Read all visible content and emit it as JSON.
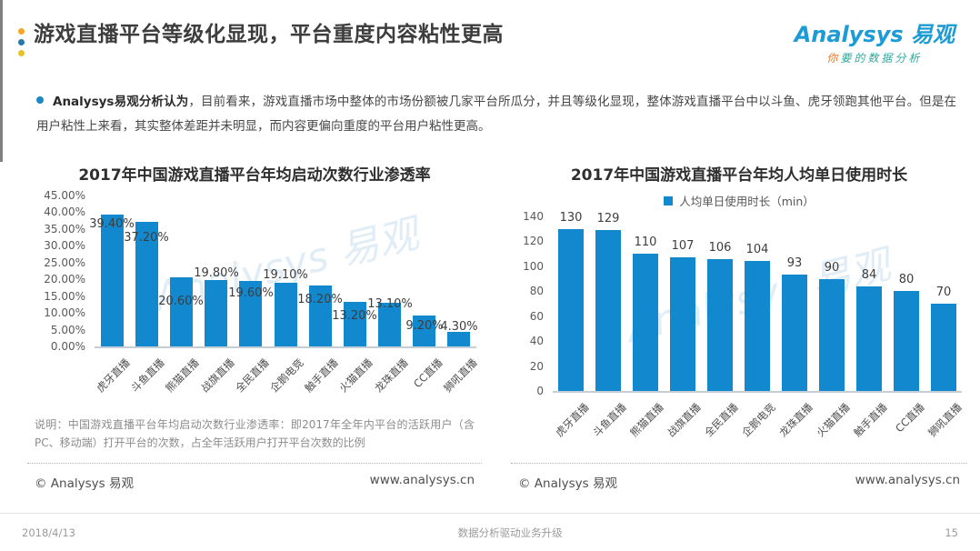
{
  "page": {
    "header": {
      "title": "游戏直播平台等级化显现，平台重度内容粘性更高",
      "logo": {
        "brand_script": "Analysys",
        "brand_cn": "易观",
        "tagline_first": "你",
        "tagline_rest": "要的数据分析"
      }
    },
    "intro": {
      "lead": "Analysys易观分析认为",
      "body": "，目前看来，游戏直播市场中整体的市场份额被几家平台所瓜分，并且等级化显现，整体游戏直播平台中以斗鱼、虎牙领跑其他平台。但是在用户粘性上来看，其实整体差距并未明显，而内容更偏向重度的平台用户粘性更高。"
    },
    "left_note": "说明：中国游戏直播平台年均启动次数行业渗透率：即2017年全年内平台的活跃用户（含PC、移动端）打开平台的次数，占全年活跃用户打开平台次数的比例",
    "source_left": {
      "copyright": "© Analysys 易观",
      "site": "www.analysys.cn"
    },
    "source_right": {
      "copyright": "© Analysys 易观",
      "site": "www.analysys.cn"
    },
    "footer": {
      "date": "2018/4/13",
      "slogan": "数据分析驱动业务升级",
      "page_no": "15"
    },
    "watermark": "Analysys 易观"
  },
  "colors": {
    "bar": "#1289cf",
    "logo_blue": "#1d9bd4",
    "tagline_orange": "#ee7620",
    "tagline_teal": "#2fa89c",
    "dot_orange": "#f5a623",
    "dot_blue": "#2678a8",
    "dot_yellow": "#e8c02e",
    "bullet_blue": "#1e88c7"
  },
  "chart_data": [
    {
      "type": "bar",
      "title": "2017年中国游戏直播平台年均启动次数行业渗透率",
      "categories": [
        "虎牙直播",
        "斗鱼直播",
        "熊猫直播",
        "战旗直播",
        "全民直播",
        "企鹅电竞",
        "触手直播",
        "火猫直播",
        "龙珠直播",
        "CC直播",
        "狮吼直播"
      ],
      "values": [
        39.4,
        37.2,
        20.6,
        19.8,
        19.6,
        19.1,
        18.2,
        13.2,
        13.1,
        9.2,
        4.3
      ],
      "value_labels": [
        "39.40%",
        "37.20%",
        "20.60%",
        "19.80%",
        "19.60%",
        "19.10%",
        "18.20%",
        "13.20%",
        "13.10%",
        "9.20%",
        "4.30%"
      ],
      "xlabel": "",
      "ylabel": "",
      "ylim": [
        0,
        45
      ],
      "yticks": [
        "45.00%",
        "40.00%",
        "35.00%",
        "30.00%",
        "25.00%",
        "20.00%",
        "15.00%",
        "10.00%",
        "5.00%",
        "0.00%"
      ],
      "grid": false,
      "legend": null,
      "legend_position": "none"
    },
    {
      "type": "bar",
      "title": "2017年中国游戏直播平台年均人均单日使用时长",
      "categories": [
        "虎牙直播",
        "斗鱼直播",
        "熊猫直播",
        "战旗直播",
        "全民直播",
        "企鹅电竞",
        "龙珠直播",
        "火猫直播",
        "触手直播",
        "CC直播",
        "狮吼直播"
      ],
      "values": [
        130,
        129,
        110,
        107,
        106,
        104,
        93,
        90,
        84,
        80,
        70
      ],
      "value_labels": [
        "130",
        "129",
        "110",
        "107",
        "106",
        "104",
        "93",
        "90",
        "84",
        "80",
        "70"
      ],
      "xlabel": "",
      "ylabel": "",
      "ylim": [
        0,
        140
      ],
      "yticks": [
        "140",
        "120",
        "100",
        "80",
        "60",
        "40",
        "20",
        "0"
      ],
      "grid": false,
      "legend": "人均单日使用时长（min）",
      "legend_position": "top"
    }
  ]
}
